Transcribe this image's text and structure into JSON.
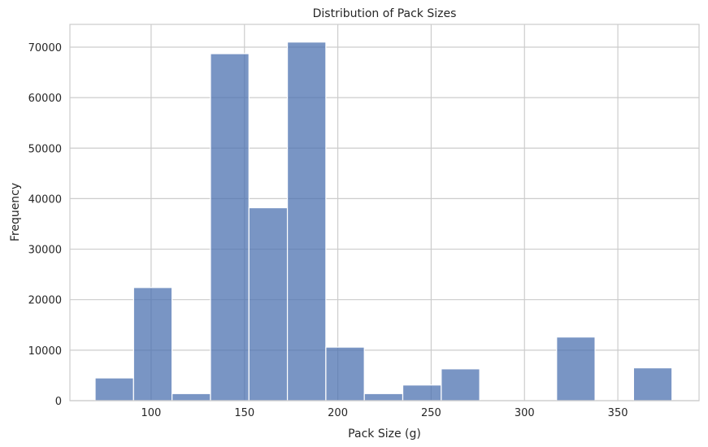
{
  "chart_data": {
    "type": "bar",
    "title": "Distribution of Pack Sizes",
    "xlabel": "Pack Size (g)",
    "ylabel": "Frequency",
    "xlim": [
      56.5,
      393.5
    ],
    "ylim": [
      0,
      74500
    ],
    "xticks": [
      100,
      150,
      200,
      250,
      300,
      350
    ],
    "yticks": [
      0,
      10000,
      20000,
      30000,
      40000,
      50000,
      60000,
      70000
    ],
    "grid": true,
    "bins": [
      {
        "start": 70.0,
        "end": 90.6,
        "count": 4500
      },
      {
        "start": 90.6,
        "end": 111.2,
        "count": 22400
      },
      {
        "start": 111.2,
        "end": 131.8,
        "count": 1400
      },
      {
        "start": 131.8,
        "end": 152.4,
        "count": 68700
      },
      {
        "start": 152.4,
        "end": 173.0,
        "count": 38200
      },
      {
        "start": 173.0,
        "end": 193.6,
        "count": 71000
      },
      {
        "start": 193.6,
        "end": 214.2,
        "count": 10600
      },
      {
        "start": 214.2,
        "end": 234.8,
        "count": 1400
      },
      {
        "start": 234.8,
        "end": 255.4,
        "count": 3100
      },
      {
        "start": 255.4,
        "end": 276.0,
        "count": 6300
      },
      {
        "start": 276.0,
        "end": 296.6,
        "count": 0
      },
      {
        "start": 296.6,
        "end": 317.2,
        "count": 0
      },
      {
        "start": 317.2,
        "end": 337.8,
        "count": 12600
      },
      {
        "start": 337.8,
        "end": 358.4,
        "count": 0
      },
      {
        "start": 358.4,
        "end": 379.0,
        "count": 6500
      }
    ]
  }
}
